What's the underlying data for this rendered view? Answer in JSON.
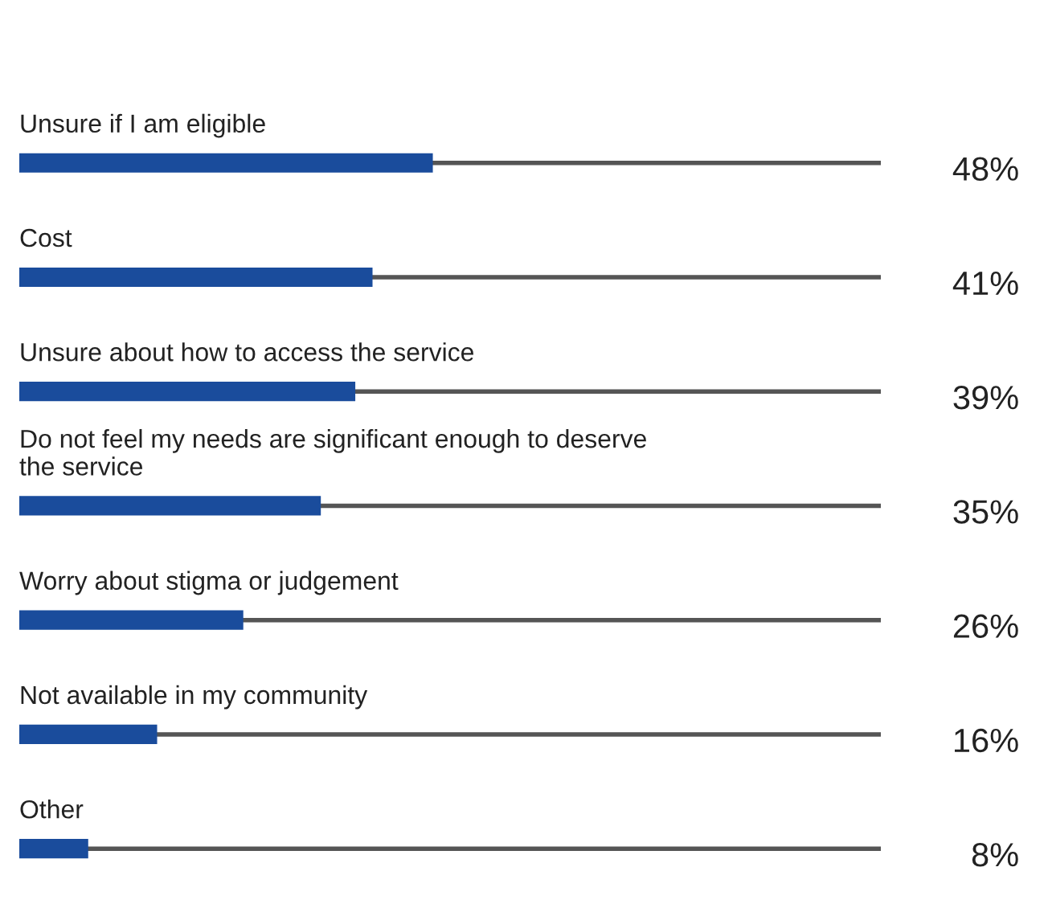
{
  "chart_data": {
    "type": "bar",
    "orientation": "horizontal",
    "categories": [
      "Unsure if I am eligible",
      "Cost",
      "Unsure about how to access the service",
      "Do not feel my needs are significant enough to deserve\nthe service",
      "Worry about stigma or judgement",
      "Not available in my community",
      "Other"
    ],
    "values": [
      48,
      41,
      39,
      35,
      26,
      16,
      8
    ],
    "value_labels": [
      "48%",
      "41%",
      "39%",
      "35%",
      "26%",
      "16%",
      "8%"
    ],
    "color": "#1a4c9c",
    "xlim": [
      0,
      100
    ],
    "tick_labels": false,
    "grid": false,
    "legend": false
  }
}
